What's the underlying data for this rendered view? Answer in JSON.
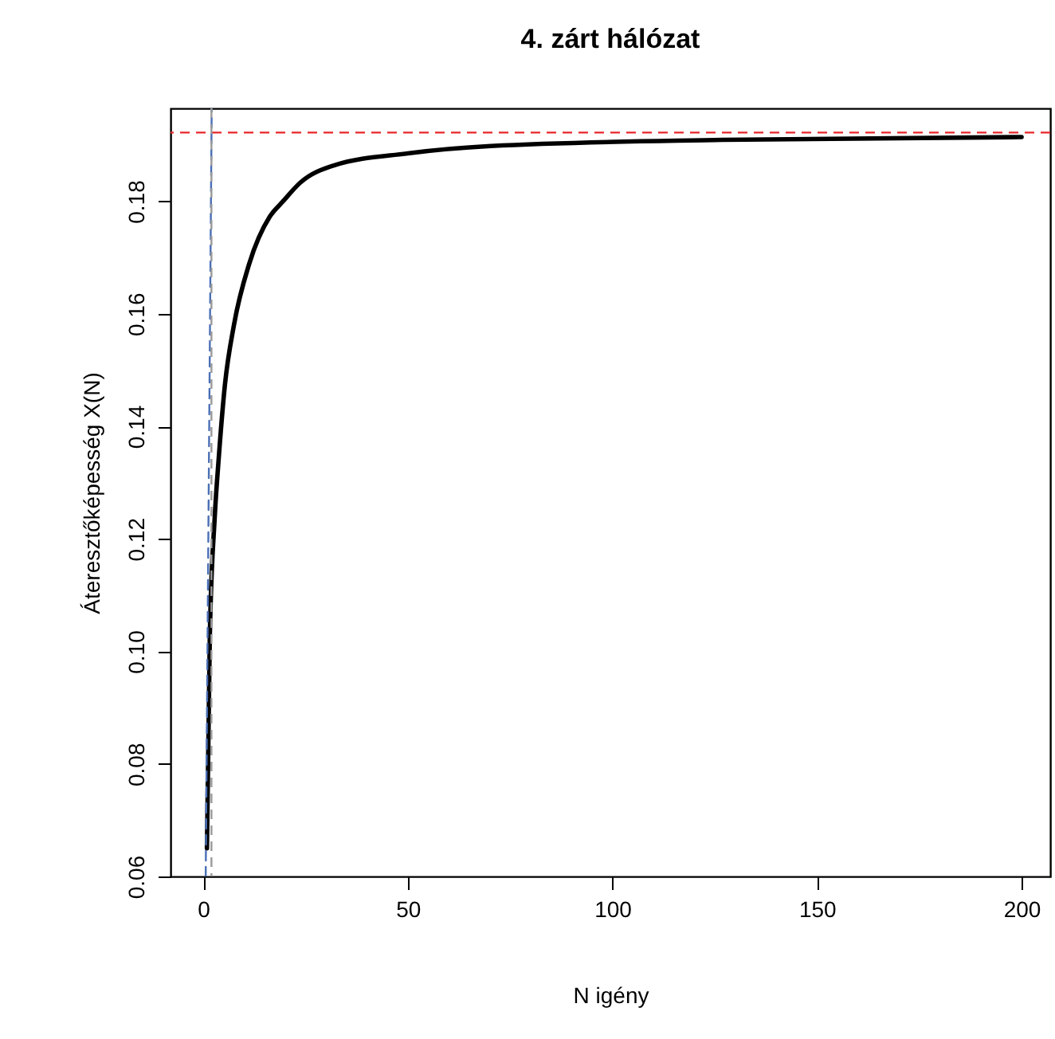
{
  "chart_data": {
    "type": "line",
    "title": "4. zárt hálózat",
    "xlabel": "N igény",
    "ylabel": "Áteresztőképesség X(N)",
    "xlim": [
      -8,
      207
    ],
    "ylim": [
      0.06,
      0.1965
    ],
    "xticks": [
      0,
      50,
      100,
      150,
      200
    ],
    "yticks": [
      0.06,
      0.08,
      {
        "value": 0.1,
        "label": "0.10"
      },
      0.12,
      0.14,
      0.16,
      0.18
    ],
    "grid": false,
    "series": [
      {
        "color": "#000000",
        "line_style": "solid",
        "x": [
          0.9,
          1.6,
          2.8,
          3.8,
          5.3,
          7.5,
          11.2,
          16.3,
          19.4,
          23.7,
          32.1,
          50,
          70.3,
          126.9,
          200
        ],
        "values": [
          0.065,
          0.1025,
          0.1238,
          0.1345,
          0.1474,
          0.158,
          0.1688,
          0.1773,
          0.1799,
          0.1833,
          0.1864,
          0.1885,
          0.1898,
          0.1909,
          0.1914
        ]
      },
      {
        "color": "#4a6fb5",
        "line_style": "dashed",
        "x": [
          0.6,
          2.06
        ],
        "values": [
          0.06,
          0.1965
        ]
      }
    ],
    "ref_lines": [
      {
        "axis": "y",
        "value": 0.1922,
        "color": "#e8262a",
        "line_style": "dashed"
      },
      {
        "axis": "x",
        "value": 2.0,
        "color": "#9a9a9a",
        "line_style": "dashed"
      }
    ]
  }
}
